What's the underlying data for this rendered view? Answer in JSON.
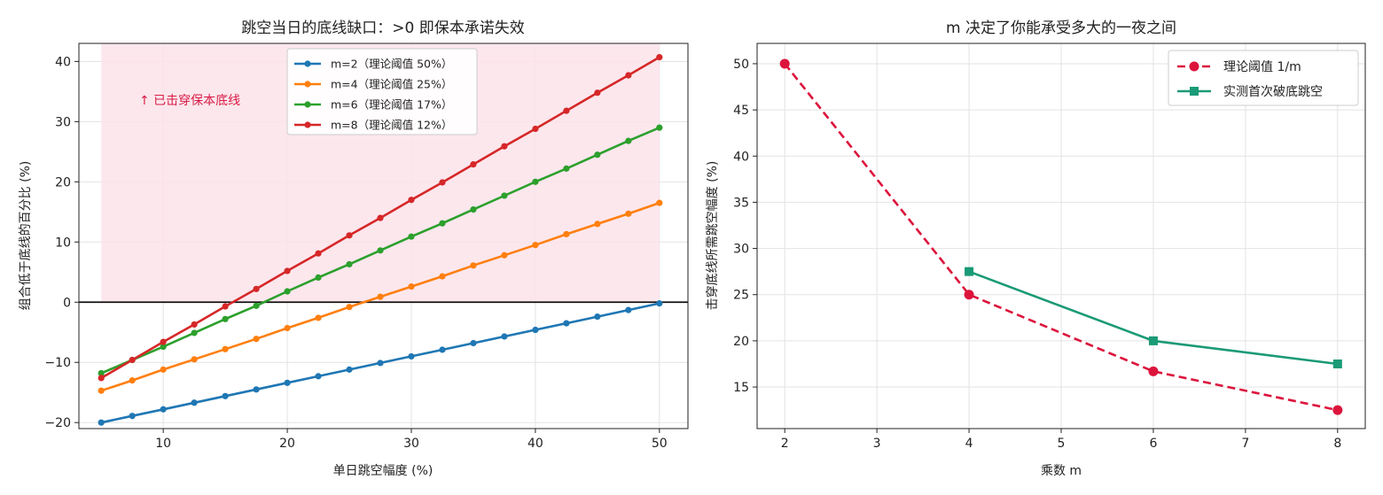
{
  "chart_data": [
    {
      "type": "line",
      "title": "跳空当日的底线缺口：>0 即保本承诺失效",
      "xlabel": "单日跳空幅度 (%)",
      "ylabel": "组合低于底线的百分比 (%)",
      "xlim": [
        3.2,
        52.3
      ],
      "ylim": [
        -21,
        43
      ],
      "xticks": [
        10,
        20,
        30,
        40,
        50
      ],
      "yticks": [
        -20,
        -10,
        0,
        10,
        20,
        30,
        40
      ],
      "ytick_labels": [
        "−20",
        "−10",
        "0",
        "10",
        "20",
        "30",
        "40"
      ],
      "grid": true,
      "legend_position": "top-center",
      "shaded_region": {
        "x": [
          5,
          50
        ],
        "y": [
          0,
          43
        ],
        "color": "#fbe3ea"
      },
      "annotation": {
        "text": "↑ 已击穿保本底线",
        "x": 7.5,
        "y": 33,
        "color": "#d81b45"
      },
      "zero_line": true,
      "x": [
        5,
        7.5,
        10,
        12.5,
        15,
        17.5,
        20,
        22.5,
        25,
        27.5,
        30,
        32.5,
        35,
        37.5,
        40,
        42.5,
        45,
        47.5,
        50
      ],
      "series": [
        {
          "name": "m=2（理论阈值 50%）",
          "color": "#1f77b4",
          "values": [
            -20,
            -18.9,
            -17.8,
            -16.7,
            -15.6,
            -14.5,
            -13.4,
            -12.3,
            -11.2,
            -10.1,
            -9,
            -7.9,
            -6.8,
            -5.7,
            -4.6,
            -3.5,
            -2.4,
            -1.3,
            -0.2
          ]
        },
        {
          "name": "m=4（理论阈值 25%）",
          "color": "#ff7f0e",
          "values": [
            -14.7,
            -13,
            -11.2,
            -9.5,
            -7.8,
            -6.1,
            -4.3,
            -2.6,
            -0.8,
            0.9,
            2.6,
            4.3,
            6.1,
            7.8,
            9.5,
            11.3,
            13,
            14.7,
            16.5
          ]
        },
        {
          "name": "m=6（理论阈值 17%）",
          "color": "#2ca02c",
          "values": [
            -11.8,
            -9.6,
            -7.4,
            -5.1,
            -2.8,
            -0.6,
            1.8,
            4.1,
            6.3,
            8.6,
            10.9,
            13.1,
            15.4,
            17.7,
            20,
            22.2,
            24.5,
            26.8,
            29
          ]
        },
        {
          "name": "m=8（理论阈值 12%）",
          "color": "#d62728",
          "values": [
            -12.6,
            -9.6,
            -6.6,
            -3.7,
            -0.7,
            2.2,
            5.2,
            8.1,
            11.1,
            14,
            17,
            19.9,
            22.9,
            25.9,
            28.8,
            31.8,
            34.8,
            37.7,
            40.7
          ]
        }
      ]
    },
    {
      "type": "line",
      "title": "m 决定了你能承受多大的一夜之间",
      "xlabel": "乘数 m",
      "ylabel": "击穿底线所需跳空幅度 (%)",
      "xlim": [
        1.7,
        8.3
      ],
      "ylim": [
        10.5,
        52.2
      ],
      "xticks": [
        2,
        3,
        4,
        5,
        6,
        7,
        8
      ],
      "yticks": [
        15,
        20,
        25,
        30,
        35,
        40,
        45,
        50
      ],
      "grid": true,
      "legend_position": "top-right",
      "series": [
        {
          "name": "理论阈值 1/m",
          "color": "#dc143c",
          "marker": "circle",
          "dashed": true,
          "x": [
            2,
            4,
            6,
            8
          ],
          "values": [
            50,
            25,
            16.7,
            12.5
          ]
        },
        {
          "name": "实测首次破底跳空",
          "color": "#1a9a76",
          "marker": "square",
          "dashed": false,
          "x": [
            4,
            6,
            8
          ],
          "values": [
            27.5,
            20,
            17.5
          ]
        }
      ]
    }
  ]
}
